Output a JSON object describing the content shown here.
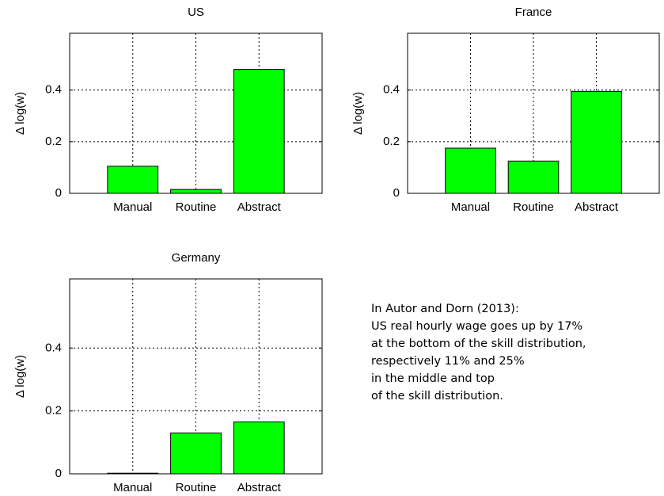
{
  "chart_data": [
    {
      "type": "bar",
      "title": "US",
      "y_label": "Δ log(w)",
      "categories": [
        "Manual",
        "Routine",
        "Abstract"
      ],
      "values": [
        0.105,
        0.015,
        0.48
      ],
      "color": "#00ff00",
      "xlim": [
        0,
        4
      ],
      "ylim": [
        0,
        0.62
      ],
      "yticks": [
        0,
        0.2,
        0.4
      ],
      "grid": true
    },
    {
      "type": "bar",
      "title": "France",
      "y_label": "Δ log(w)",
      "categories": [
        "Manual",
        "Routine",
        "Abstract"
      ],
      "values": [
        0.175,
        0.125,
        0.395
      ],
      "color": "#00ff00",
      "xlim": [
        0,
        4
      ],
      "ylim": [
        0,
        0.62
      ],
      "yticks": [
        0,
        0.2,
        0.4
      ],
      "grid": true
    },
    {
      "type": "bar",
      "title": "Germany",
      "y_label": "Δ log(w)",
      "categories": [
        "Manual",
        "Routine",
        "Abstract"
      ],
      "values": [
        0.002,
        0.13,
        0.165
      ],
      "color": "#00ff00",
      "xlim": [
        0,
        4
      ],
      "ylim": [
        0,
        0.62
      ],
      "yticks": [
        0,
        0.2,
        0.4
      ],
      "grid": true
    }
  ],
  "note": {
    "lines": [
      "In Autor and Dorn (2013):",
      "US real hourly wage goes up by 17%",
      "at the bottom of the skill distribution,",
      "respectively 11% and 25%",
      "in the middle and top",
      "of the skill distribution."
    ]
  }
}
